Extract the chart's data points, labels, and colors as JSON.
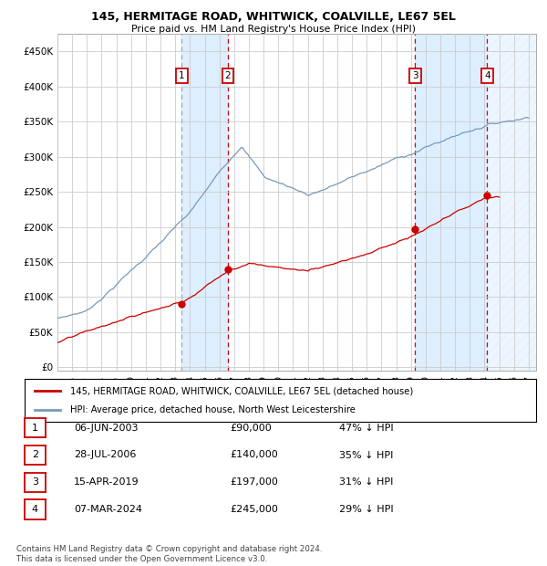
{
  "title1": "145, HERMITAGE ROAD, WHITWICK, COALVILLE, LE67 5EL",
  "title2": "Price paid vs. HM Land Registry's House Price Index (HPI)",
  "ylabel_ticks": [
    "£0",
    "£50K",
    "£100K",
    "£150K",
    "£200K",
    "£250K",
    "£300K",
    "£350K",
    "£400K",
    "£450K"
  ],
  "ytick_vals": [
    0,
    50000,
    100000,
    150000,
    200000,
    250000,
    300000,
    350000,
    400000,
    450000
  ],
  "xlim": [
    1995.0,
    2027.5
  ],
  "ylim": [
    -5000,
    475000
  ],
  "legend_line1": "145, HERMITAGE ROAD, WHITWICK, COALVILLE, LE67 5EL (detached house)",
  "legend_line2": "HPI: Average price, detached house, North West Leicestershire",
  "transactions": [
    {
      "num": 1,
      "date": "06-JUN-2003",
      "price": 90000,
      "pct": "47%",
      "year": 2003.44
    },
    {
      "num": 2,
      "date": "28-JUL-2006",
      "price": 140000,
      "pct": "35%",
      "year": 2006.58
    },
    {
      "num": 3,
      "date": "15-APR-2019",
      "price": 197000,
      "pct": "31%",
      "year": 2019.29
    },
    {
      "num": 4,
      "date": "07-MAR-2024",
      "price": 245000,
      "pct": "29%",
      "year": 2024.18
    }
  ],
  "footnote1": "Contains HM Land Registry data © Crown copyright and database right 2024.",
  "footnote2": "This data is licensed under the Open Government Licence v3.0.",
  "red_color": "#cc0000",
  "blue_color": "#7799bb",
  "shade_color": "#ddeeff",
  "grid_color": "#cccccc",
  "bg_color": "#ffffff"
}
